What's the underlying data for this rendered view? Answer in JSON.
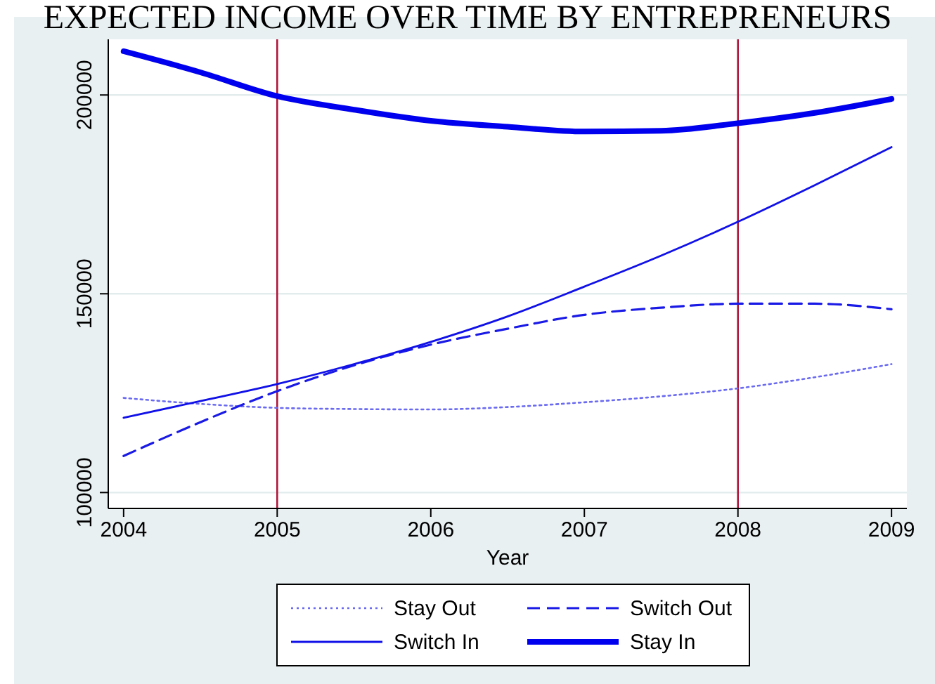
{
  "chart_data": {
    "type": "line",
    "title": "EXPECTED INCOME OVER TIME BY ENTREPRENEURS",
    "xlabel": "Year",
    "x": [
      2004,
      2004.5,
      2005,
      2005.5,
      2006,
      2006.5,
      2007,
      2007.5,
      2008,
      2008.5,
      2009
    ],
    "series": [
      {
        "name": "Stay Out",
        "color": "#6a6af0",
        "line_style": "dotted",
        "values": [
          123800,
          122300,
          121300,
          121000,
          120900,
          121500,
          122700,
          124200,
          126200,
          129000,
          132300
        ]
      },
      {
        "name": "Switch Out",
        "color": "#1a1ae6",
        "line_style": "dashed",
        "values": [
          109200,
          117700,
          125500,
          132000,
          137200,
          141200,
          144700,
          146500,
          147500,
          147500,
          146100
        ]
      },
      {
        "name": "Switch In",
        "color": "#1010e8",
        "line_style": "solid",
        "values": [
          118800,
          123000,
          127300,
          132300,
          137900,
          144300,
          151800,
          159600,
          168100,
          177300,
          186900
        ]
      },
      {
        "name": "Stay In",
        "color": "#0000ee",
        "line_style": "solid",
        "values": [
          211000,
          205700,
          199700,
          196300,
          193500,
          192000,
          190800,
          191000,
          192900,
          195500,
          199000
        ]
      }
    ],
    "xlim": [
      2003.9,
      2009.1
    ],
    "ylim": [
      96000,
      214000
    ],
    "xticks": [
      2004,
      2005,
      2006,
      2007,
      2008,
      2009
    ],
    "yticks": [
      100000,
      150000,
      200000
    ],
    "ref_lines": [
      {
        "axis": "x",
        "value": 2005,
        "color": "#b0183c"
      },
      {
        "axis": "x",
        "value": 2008,
        "color": "#b0183c"
      }
    ],
    "grid": "y",
    "legend": "bottom"
  }
}
